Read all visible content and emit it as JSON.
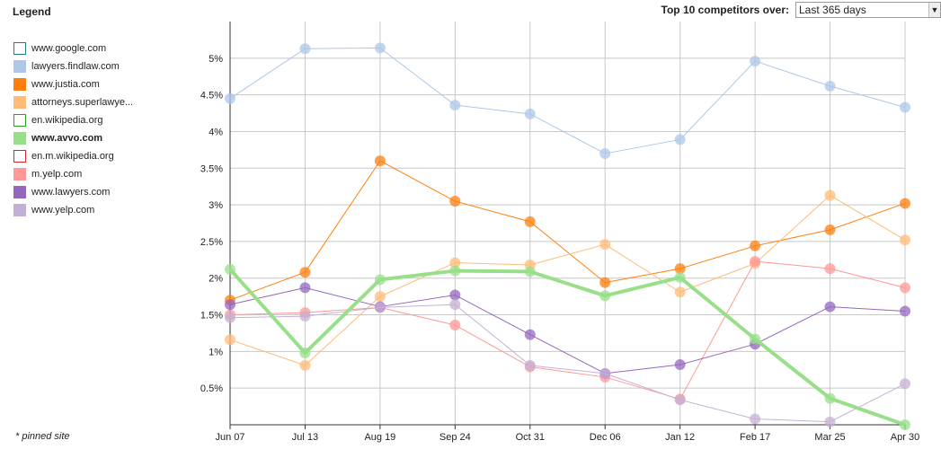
{
  "legend": {
    "title": "Legend",
    "pinned_note": "* pinned site",
    "items": [
      {
        "label": "www.google.com",
        "color": "#2a7a8a",
        "style": "outline"
      },
      {
        "label": "lawyers.findlaw.com",
        "color": "#aec7e8",
        "style": "fill"
      },
      {
        "label": "www.justia.com",
        "color": "#ff7f0e",
        "style": "fill"
      },
      {
        "label": "attorneys.superlawye...",
        "color": "#ffbb78",
        "style": "fill"
      },
      {
        "label": "en.wikipedia.org",
        "color": "#2ca02c",
        "style": "outline"
      },
      {
        "label": "www.avvo.com",
        "color": "#98df8a",
        "style": "fill",
        "bold": true
      },
      {
        "label": "en.m.wikipedia.org",
        "color": "#d62728",
        "style": "outline"
      },
      {
        "label": "m.yelp.com",
        "color": "#ff9896",
        "style": "fill"
      },
      {
        "label": "www.lawyers.com",
        "color": "#9467bd",
        "style": "fill"
      },
      {
        "label": "www.yelp.com",
        "color": "#c5b0d5",
        "style": "fill"
      }
    ]
  },
  "controls": {
    "top_label": "Top 10 competitors over:",
    "period_value": "Last 365 days"
  },
  "chart_data": {
    "type": "line",
    "x": [
      "Jun 07",
      "Jul 13",
      "Aug 19",
      "Sep 24",
      "Oct 31",
      "Dec 06",
      "Jan 12",
      "Feb 17",
      "Mar 25",
      "Apr 30"
    ],
    "ylim": [
      0,
      5.5
    ],
    "yticks": [
      0.5,
      1,
      1.5,
      2,
      2.5,
      3,
      3.5,
      4,
      4.5,
      5
    ],
    "ytick_labels": [
      "0.5%",
      "1%",
      "1.5%",
      "2%",
      "2.5%",
      "3%",
      "3.5%",
      "4%",
      "4.5%",
      "5%"
    ],
    "grid": true,
    "series": [
      {
        "name": "lawyers.findlaw.com",
        "color": "#aec7e8",
        "width": 1,
        "values": [
          4.45,
          5.13,
          5.14,
          4.36,
          4.24,
          3.7,
          3.89,
          4.96,
          4.62,
          4.33
        ]
      },
      {
        "name": "www.justia.com",
        "color": "#ff7f0e",
        "width": 1,
        "values": [
          1.7,
          2.08,
          3.6,
          3.05,
          2.77,
          1.94,
          2.13,
          2.44,
          2.66,
          3.02
        ]
      },
      {
        "name": "attorneys.superlawye...",
        "color": "#ffbb78",
        "width": 1,
        "values": [
          1.16,
          0.81,
          1.75,
          2.21,
          2.18,
          2.46,
          1.81,
          2.2,
          3.13,
          2.52
        ]
      },
      {
        "name": "m.yelp.com",
        "color": "#ff9896",
        "width": 1,
        "values": [
          1.5,
          1.53,
          1.6,
          1.36,
          0.79,
          0.65,
          0.35,
          2.23,
          2.13,
          1.87
        ]
      },
      {
        "name": "www.lawyers.com",
        "color": "#9467bd",
        "width": 1,
        "values": [
          1.64,
          1.87,
          1.61,
          1.77,
          1.23,
          0.7,
          0.82,
          1.1,
          1.61,
          1.55
        ]
      },
      {
        "name": "www.yelp.com",
        "color": "#c5b0d5",
        "width": 1,
        "values": [
          1.46,
          1.48,
          1.6,
          1.64,
          0.81,
          0.7,
          0.34,
          0.08,
          0.04,
          0.56
        ]
      },
      {
        "name": "www.avvo.com",
        "color": "#98df8a",
        "width": 4,
        "values": [
          2.12,
          0.98,
          1.98,
          2.1,
          2.09,
          1.76,
          2.01,
          1.17,
          0.36,
          0.0
        ]
      }
    ]
  }
}
